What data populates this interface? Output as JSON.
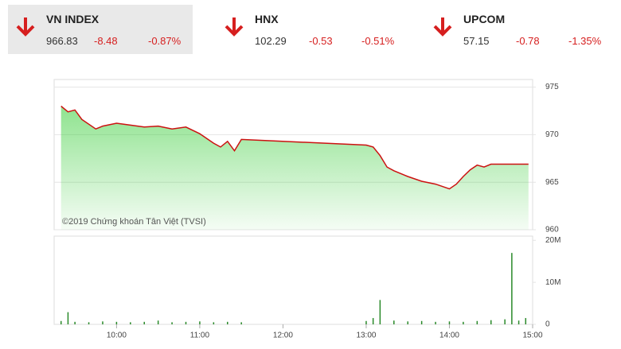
{
  "indices": [
    {
      "name": "VN INDEX",
      "value": "966.83",
      "change": "-8.48",
      "percent": "-0.87%"
    },
    {
      "name": "HNX",
      "value": "102.29",
      "change": "-0.53",
      "percent": "-0.51%"
    },
    {
      "name": "UPCOM",
      "value": "57.15",
      "change": "-0.78",
      "percent": "-1.35%"
    }
  ],
  "chart_data": [
    {
      "type": "line",
      "annotation": "©2019 Chứng khoán Tân Việt (TVSI)",
      "color": "#cc1111",
      "area_color": "#33cc33",
      "x": [
        "09:20",
        "09:25",
        "09:30",
        "09:35",
        "09:45",
        "09:50",
        "10:00",
        "10:10",
        "10:20",
        "10:30",
        "10:40",
        "10:50",
        "11:00",
        "11:10",
        "11:15",
        "11:20",
        "11:25",
        "11:30",
        "13:00",
        "13:05",
        "13:10",
        "13:15",
        "13:20",
        "13:30",
        "13:40",
        "13:50",
        "14:00",
        "14:05",
        "14:10",
        "14:15",
        "14:20",
        "14:25",
        "14:30",
        "14:45",
        "14:57"
      ],
      "values": [
        973.0,
        972.4,
        972.6,
        971.6,
        970.6,
        970.9,
        971.2,
        971.0,
        970.8,
        970.9,
        970.6,
        970.8,
        970.1,
        969.1,
        968.7,
        969.3,
        968.3,
        969.5,
        968.9,
        968.7,
        967.8,
        966.6,
        966.2,
        965.6,
        965.1,
        964.8,
        964.3,
        964.8,
        965.6,
        966.3,
        966.8,
        966.6,
        966.9,
        966.9,
        966.9
      ],
      "xlim": [
        "09:15",
        "15:00"
      ],
      "ylim": [
        960,
        975.8
      ],
      "yticks": [
        960,
        965,
        970,
        975
      ],
      "grid": true
    },
    {
      "type": "bar",
      "color": "#2a8a2a",
      "x": [
        "09:20",
        "09:25",
        "09:30",
        "09:40",
        "09:50",
        "10:00",
        "10:10",
        "10:20",
        "10:30",
        "10:40",
        "10:50",
        "11:00",
        "11:10",
        "11:20",
        "11:30",
        "13:00",
        "13:05",
        "13:10",
        "13:20",
        "13:30",
        "13:40",
        "13:50",
        "14:00",
        "14:10",
        "14:20",
        "14:30",
        "14:40",
        "14:45",
        "14:50",
        "14:55"
      ],
      "values": [
        800000,
        2900000,
        600000,
        500000,
        700000,
        600000,
        500000,
        600000,
        900000,
        500000,
        600000,
        700000,
        500000,
        600000,
        500000,
        800000,
        1500000,
        5800000,
        900000,
        700000,
        800000,
        600000,
        700000,
        600000,
        800000,
        1000000,
        1200000,
        17000000,
        900000,
        1500000
      ],
      "xlim": [
        "09:15",
        "15:00"
      ],
      "ylim": [
        0,
        21000000
      ],
      "yticks": [
        0,
        {
          "value": 10000000,
          "label": "10M"
        },
        {
          "value": 20000000,
          "label": "20M"
        }
      ],
      "xticks": [
        "10:00",
        "11:00",
        "12:00",
        "13:00",
        "14:00",
        "15:00"
      ]
    }
  ]
}
